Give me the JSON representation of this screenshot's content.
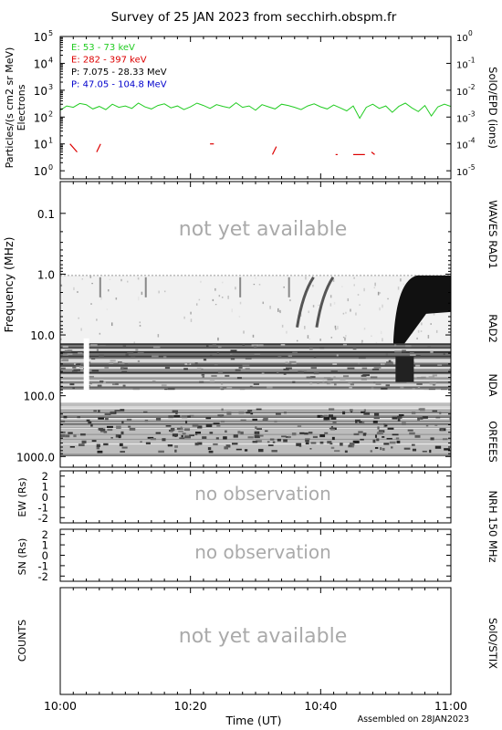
{
  "title": "Survey of 25 JAN 2023 from secchirh.obspm.fr",
  "assembled": "Assembled on 28JAN2023",
  "x_axis": {
    "label": "Time (UT)",
    "ticks": [
      "10:00",
      "10:20",
      "10:40",
      "11:00"
    ]
  },
  "panels": {
    "particles": {
      "ylabel_line1": "Particles/(s cm2 sr MeV)",
      "ylabel_line2": "Electrons",
      "right_label": "SolO/EPD (ions)",
      "left_ticks": [
        {
          "base": "10",
          "exp": "5"
        },
        {
          "base": "10",
          "exp": "4"
        },
        {
          "base": "10",
          "exp": "3"
        },
        {
          "base": "10",
          "exp": "2"
        },
        {
          "base": "10",
          "exp": "1"
        },
        {
          "base": "10",
          "exp": "0"
        }
      ],
      "right_ticks": [
        {
          "base": "10",
          "exp": "0"
        },
        {
          "base": "10",
          "exp": "-1"
        },
        {
          "base": "10",
          "exp": "-2"
        },
        {
          "base": "10",
          "exp": "-3"
        },
        {
          "base": "10",
          "exp": "-4"
        },
        {
          "base": "10",
          "exp": "-5"
        }
      ],
      "legend": [
        {
          "label": "E: 53 - 73 keV",
          "color": "#22cc22"
        },
        {
          "label": "E: 282 - 397 keV",
          "color": "#dd0000"
        },
        {
          "label": "P: 7.075 - 28.33 MeV",
          "color": "#000000"
        },
        {
          "label": "P: 47.05 - 104.8 MeV",
          "color": "#0000cc"
        }
      ]
    },
    "spectrum": {
      "ylabel": "Frequency (MHz)",
      "ticks": [
        "0.1",
        "1.0",
        "10.0",
        "100.0",
        "1000.0"
      ],
      "placeholder": "not yet available",
      "instruments": [
        "WAVES RAD1",
        "RAD2",
        "NDA",
        "ORFEES"
      ]
    },
    "ew": {
      "ylabel": "EW (Rs)",
      "ticks": [
        "2",
        "1",
        "0",
        "-1",
        "-2"
      ],
      "placeholder": "no observation"
    },
    "sn": {
      "ylabel": "SN (Rs)",
      "ticks": [
        "2",
        "1",
        "0",
        "-1",
        "-2"
      ],
      "placeholder": "no observation"
    },
    "nrh_label": "NRH 150 MHz",
    "stix": {
      "ylabel": "COUNTS",
      "placeholder": "not yet available",
      "right_label": "SolO/STIX"
    }
  },
  "chart_data": [
    {
      "type": "line",
      "title": "Survey of 25 JAN 2023 from secchirh.obspm.fr",
      "xlabel": "Time (UT)",
      "xlim": [
        "10:00",
        "11:00"
      ],
      "ylabel": "Particles/(s cm2 sr MeV)",
      "yscale": "log",
      "ylim": [
        0.5,
        100000
      ],
      "series": [
        {
          "name": "E: 53 - 73 keV",
          "color": "#22cc22",
          "x_minutes": [
            0,
            1,
            2,
            3,
            4,
            5,
            6,
            7,
            8,
            9,
            10,
            11,
            12,
            13,
            14,
            15,
            16,
            17,
            18,
            19,
            20,
            21,
            22,
            23,
            24,
            25,
            26,
            27,
            28,
            29,
            30,
            31,
            32,
            33,
            34,
            35,
            36,
            37,
            38,
            39,
            40,
            41,
            42,
            43,
            44,
            45,
            46,
            47,
            48,
            49,
            50,
            51,
            52,
            53,
            54,
            55,
            56,
            57,
            58,
            59,
            60
          ],
          "values": [
            180,
            260,
            230,
            320,
            290,
            200,
            250,
            190,
            300,
            230,
            260,
            210,
            330,
            240,
            200,
            270,
            310,
            220,
            260,
            190,
            240,
            330,
            270,
            210,
            290,
            250,
            220,
            340,
            230,
            260,
            180,
            290,
            240,
            200,
            300,
            270,
            230,
            190,
            260,
            310,
            240,
            200,
            280,
            220,
            170,
            260,
            90,
            230,
            300,
            210,
            260,
            150,
            250,
            330,
            220,
            160,
            270,
            110,
            240,
            300,
            250
          ]
        },
        {
          "name": "E: 282 - 397 keV",
          "color": "#dd0000",
          "segments": [
            {
              "x_minutes": [
                1.5,
                2.6
              ],
              "values": [
                10,
                5
              ]
            },
            {
              "x_minutes": [
                5.6,
                6.2
              ],
              "values": [
                5,
                10
              ]
            },
            {
              "x_minutes": [
                23.0,
                23.6
              ],
              "values": [
                10,
                10
              ]
            },
            {
              "x_minutes": [
                32.6,
                33.2
              ],
              "values": [
                4,
                8
              ]
            },
            {
              "x_minutes": [
                42.3,
                42.6
              ],
              "values": [
                4,
                4
              ]
            },
            {
              "x_minutes": [
                45.0,
                46.8
              ],
              "values": [
                4,
                4
              ]
            },
            {
              "x_minutes": [
                47.8,
                48.3
              ],
              "values": [
                5,
                4
              ]
            }
          ]
        },
        {
          "name": "P: 7.075 - 28.33 MeV",
          "color": "#000000",
          "values": []
        },
        {
          "name": "P: 47.05 - 104.8 MeV",
          "color": "#0000cc",
          "values": []
        }
      ],
      "right_axis": {
        "label": "SolO/EPD (ions)",
        "yscale": "log",
        "ylim": [
          5e-06,
          1
        ]
      }
    },
    {
      "type": "heatmap",
      "ylabel": "Frequency (MHz)",
      "yscale": "log",
      "yaxis_inverted": true,
      "ylim": [
        0.03,
        1500
      ],
      "bands": [
        "WAVES RAD1",
        "RAD2",
        "NDA",
        "ORFEES"
      ],
      "bursts_minutes": [
        37.5,
        40.5,
        52.0
      ]
    },
    {
      "type": "line",
      "ylabel": "EW (Rs)",
      "ylim": [
        -2.5,
        2.5
      ],
      "series": []
    },
    {
      "type": "line",
      "ylabel": "SN (Rs)",
      "ylim": [
        -2.5,
        2.5
      ],
      "series": []
    },
    {
      "type": "line",
      "ylabel": "COUNTS",
      "series": []
    }
  ]
}
